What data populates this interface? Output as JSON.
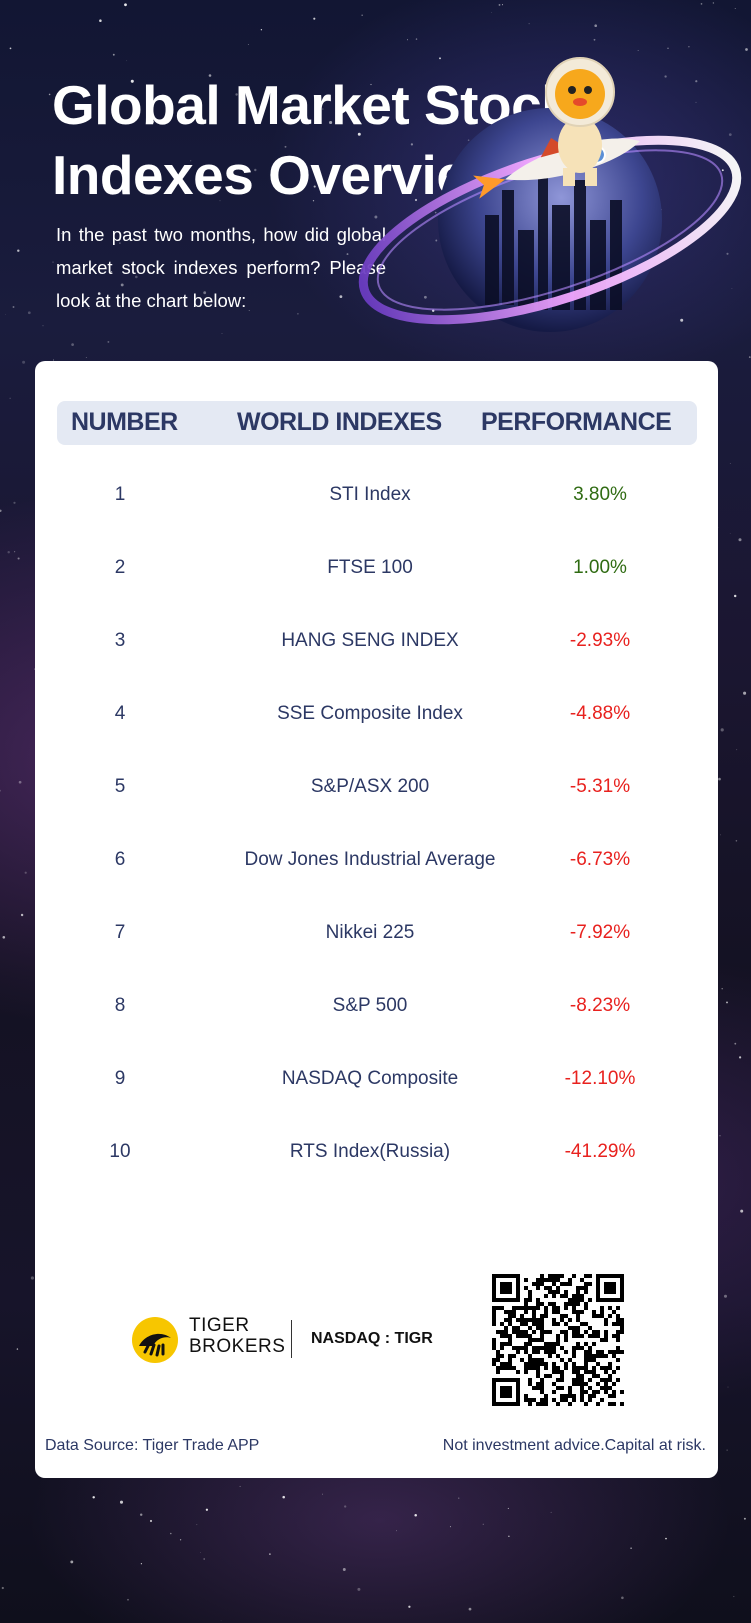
{
  "header": {
    "title": "Global Market Stock Indexes Overview",
    "subtitle": "In the past two months, how did global market stock indexes perform? Please look at the chart below:"
  },
  "table": {
    "columns": [
      "NUMBER",
      "WORLD INDEXES",
      "PERFORMANCE"
    ],
    "rows": [
      {
        "number": "1",
        "index": "STI Index",
        "performance": "3.80%",
        "direction": "up"
      },
      {
        "number": "2",
        "index": "FTSE 100",
        "performance": "1.00%",
        "direction": "up"
      },
      {
        "number": "3",
        "index": "HANG SENG INDEX",
        "performance": "-2.93%",
        "direction": "down"
      },
      {
        "number": "4",
        "index": "SSE Composite Index",
        "performance": "-4.88%",
        "direction": "down"
      },
      {
        "number": "5",
        "index": "S&P/ASX 200",
        "performance": "-5.31%",
        "direction": "down"
      },
      {
        "number": "6",
        "index": "Dow Jones Industrial Average",
        "performance": "-6.73%",
        "direction": "down"
      },
      {
        "number": "7",
        "index": "Nikkei 225",
        "performance": "-7.92%",
        "direction": "down"
      },
      {
        "number": "8",
        "index": "S&P 500",
        "performance": "-8.23%",
        "direction": "down"
      },
      {
        "number": "9",
        "index": "NASDAQ Composite",
        "performance": "-12.10%",
        "direction": "down"
      },
      {
        "number": "10",
        "index": "RTS Index(Russia)",
        "performance": "-41.29%",
        "direction": "down"
      }
    ]
  },
  "brand": {
    "line1": "TIGER",
    "line2": "BROKERS",
    "ticker": "NASDAQ : TIGR"
  },
  "footer": {
    "source": "Data Source: Tiger Trade APP",
    "disclaimer": "Not investment advice.Capital at risk."
  },
  "colors": {
    "positive": "#2f6b12",
    "negative": "#e8211e",
    "text": "#2c3864",
    "header_bg": "#e4e9f3",
    "brand_yellow": "#f7c600"
  }
}
